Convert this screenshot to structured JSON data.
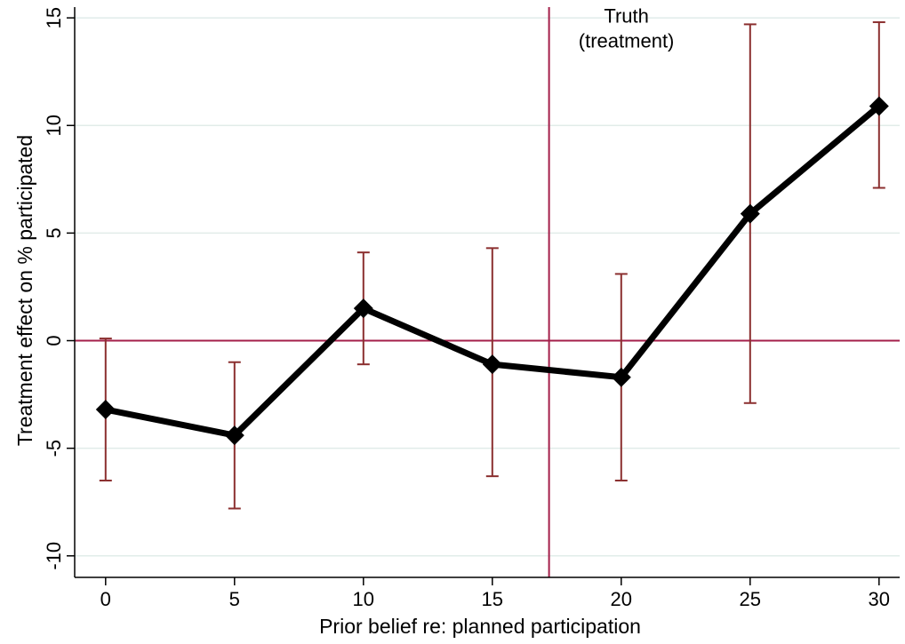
{
  "chart_data": {
    "type": "line",
    "title": "",
    "xlabel": "Prior belief re: planned participation",
    "ylabel": "Treatment effect on % participated",
    "xlim": [
      -1.2,
      30.8
    ],
    "ylim": [
      -11,
      15.5
    ],
    "xticks": [
      0,
      5,
      10,
      15,
      20,
      25,
      30
    ],
    "yticks": [
      -10,
      -5,
      0,
      5,
      10,
      15
    ],
    "grid": "horizontal",
    "series": [
      {
        "x": [
          0,
          5,
          10,
          15,
          20,
          25,
          30
        ],
        "y": [
          -3.2,
          -4.4,
          1.5,
          -1.1,
          -1.7,
          5.9,
          10.9
        ],
        "ci_low": [
          -6.5,
          -7.8,
          -1.1,
          -6.3,
          -6.5,
          -2.9,
          7.1
        ],
        "ci_high": [
          0.1,
          -1.0,
          4.1,
          4.3,
          3.1,
          14.7,
          14.8
        ]
      }
    ],
    "reference_lines": {
      "horizontal_y": 0,
      "vertical_x": 17.2
    },
    "annotations": [
      {
        "text_line1": "Truth",
        "text_line2": "(treatment)",
        "x": 20.2,
        "y": 14.2
      }
    ],
    "colors": {
      "line": "#000000",
      "marker": "#000000",
      "errorbar": "#8b2f2f",
      "refline": "#a41f4a",
      "grid": "#e1ece9"
    }
  }
}
